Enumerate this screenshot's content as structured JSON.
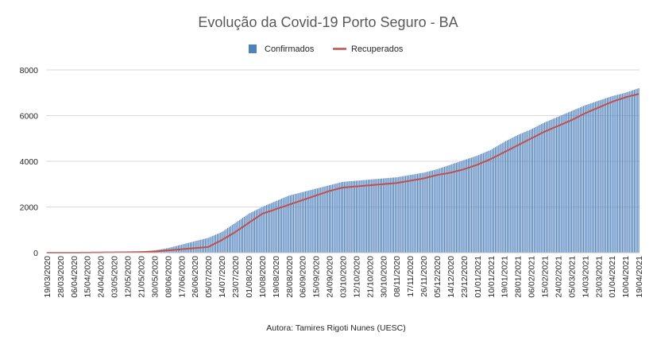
{
  "chart_data": {
    "type": "bar",
    "title": "Evolução da Covid-19 Porto Seguro - BA",
    "xlabel": "",
    "ylabel": "",
    "ylim": [
      0,
      8000
    ],
    "yticks": [
      "0",
      "2000",
      "4000",
      "6000",
      "8000"
    ],
    "grid": true,
    "legend_position": "top",
    "x_range": [
      "19/03/2020",
      "19/04/2021"
    ],
    "x_tick_step_days": 9,
    "categories": [
      "19/03/2020",
      "28/03/2020",
      "06/04/2020",
      "15/04/2020",
      "24/04/2020",
      "03/05/2020",
      "12/05/2020",
      "21/05/2020",
      "30/05/2020",
      "08/06/2020",
      "17/06/2020",
      "26/06/2020",
      "05/07/2020",
      "14/07/2020",
      "23/07/2020",
      "01/08/2020",
      "10/08/2020",
      "19/08/2020",
      "28/08/2020",
      "06/09/2020",
      "15/09/2020",
      "24/09/2020",
      "03/10/2020",
      "12/10/2020",
      "21/10/2020",
      "30/10/2020",
      "08/11/2020",
      "17/11/2020",
      "26/11/2020",
      "05/12/2020",
      "14/12/2020",
      "23/12/2020",
      "01/01/2021",
      "10/01/2021",
      "19/01/2021",
      "28/01/2021",
      "06/02/2021",
      "15/02/2021",
      "24/02/2021",
      "05/03/2021",
      "14/03/2021",
      "23/03/2021",
      "01/04/2021",
      "10/04/2021",
      "19/04/2021"
    ],
    "series": [
      {
        "name": "Confirmados",
        "type": "bar",
        "color": "#4f81bd",
        "values": [
          0,
          0,
          5,
          10,
          15,
          20,
          30,
          50,
          100,
          200,
          350,
          500,
          650,
          900,
          1300,
          1700,
          2000,
          2250,
          2500,
          2650,
          2800,
          2950,
          3100,
          3150,
          3200,
          3250,
          3300,
          3400,
          3500,
          3650,
          3850,
          4050,
          4250,
          4500,
          4850,
          5150,
          5400,
          5700,
          5950,
          6200,
          6450,
          6650,
          6850,
          7000,
          7200
        ]
      },
      {
        "name": "Recuperados",
        "type": "line",
        "color": "#c0504d",
        "values": [
          0,
          0,
          0,
          5,
          10,
          15,
          20,
          30,
          50,
          100,
          150,
          200,
          250,
          550,
          900,
          1300,
          1700,
          1900,
          2100,
          2300,
          2500,
          2700,
          2850,
          2900,
          2950,
          3000,
          3050,
          3150,
          3250,
          3400,
          3500,
          3650,
          3850,
          4100,
          4400,
          4700,
          5000,
          5300,
          5550,
          5800,
          6100,
          6350,
          6600,
          6800,
          6950
        ]
      }
    ]
  },
  "legend": [
    {
      "label": "Confirmados",
      "color": "#4f81bd"
    },
    {
      "label": "Recuperados",
      "color": "#c0504d"
    }
  ],
  "footer": "Autora: Tamires Rigoti Nunes (UESC)"
}
